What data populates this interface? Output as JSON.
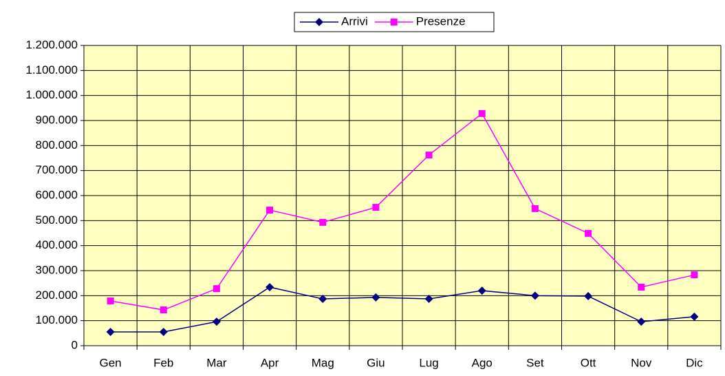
{
  "chart_data": {
    "type": "line",
    "categories": [
      "Gen",
      "Feb",
      "Mar",
      "Apr",
      "Mag",
      "Giu",
      "Lug",
      "Ago",
      "Set",
      "Ott",
      "Nov",
      "Dic"
    ],
    "series": [
      {
        "name": "Arrivi",
        "color": "#000080",
        "marker": "diamond",
        "values": [
          55000,
          55000,
          96000,
          234000,
          187000,
          193000,
          187000,
          220000,
          200000,
          198000,
          96000,
          116000
        ]
      },
      {
        "name": "Presenze",
        "color": "#ff00ff",
        "marker": "square",
        "values": [
          179000,
          143000,
          228000,
          542000,
          493000,
          553000,
          762000,
          928000,
          548000,
          449000,
          234000,
          283000
        ]
      }
    ],
    "ylim": [
      0,
      1200000
    ],
    "yticks": [
      0,
      {
        "value": 100000,
        "label": "100.000"
      },
      {
        "value": 200000,
        "label": "200.000"
      },
      {
        "value": 300000,
        "label": "300.000"
      },
      {
        "value": 400000,
        "label": "400.000"
      },
      {
        "value": 500000,
        "label": "500.000"
      },
      {
        "value": 600000,
        "label": "600.000"
      },
      {
        "value": 700000,
        "label": "700.000"
      },
      {
        "value": 800000,
        "label": "800.000"
      },
      {
        "value": 900000,
        "label": "900.000"
      },
      {
        "value": 1000000,
        "label": "1.000.000"
      },
      {
        "value": 1100000,
        "label": "1.100.000"
      },
      {
        "value": 1200000,
        "label": "1.200.000"
      }
    ],
    "grid": true,
    "legend": "top",
    "plot_background": "#ffffc0"
  }
}
